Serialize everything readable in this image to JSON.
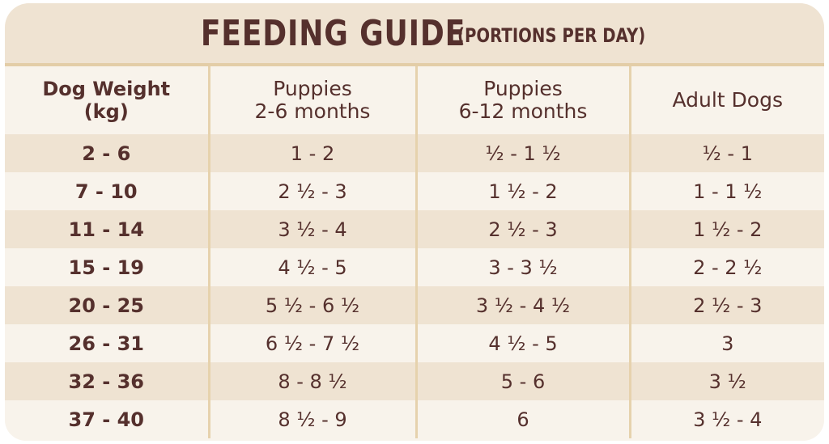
{
  "title": {
    "main": "FEEDING GUIDE",
    "sub": "(PORTIONS PER DAY)"
  },
  "colors": {
    "text": "#55302d",
    "header_band": "#efe3d2",
    "row_light": "#f8f3eb",
    "row_dark": "#efe3d2",
    "divider": "#e6d2ad"
  },
  "table": {
    "headers": [
      {
        "line1": "Dog Weight",
        "line2": "(kg)"
      },
      {
        "line1": "Puppies",
        "line2": "2-6 months"
      },
      {
        "line1": "Puppies",
        "line2": "6-12 months"
      },
      {
        "line1": "Adult Dogs",
        "line2": ""
      }
    ],
    "rows": [
      [
        "2 - 6",
        "1 - 2",
        "½ - 1 ½",
        "½ - 1"
      ],
      [
        "7 - 10",
        "2 ½ - 3",
        "1 ½ - 2",
        "1 - 1 ½"
      ],
      [
        "11 - 14",
        "3 ½ - 4",
        "2 ½ - 3",
        "1 ½ - 2"
      ],
      [
        "15 - 19",
        "4 ½ - 5",
        "3 - 3 ½",
        "2 - 2 ½"
      ],
      [
        "20 - 25",
        "5 ½ - 6 ½",
        "3 ½ - 4 ½",
        "2 ½ - 3"
      ],
      [
        "26 - 31",
        "6 ½ - 7 ½",
        "4 ½ - 5",
        "3"
      ],
      [
        "32 - 36",
        "8 - 8 ½",
        "5 - 6",
        "3 ½"
      ],
      [
        "37 - 40",
        "8 ½ - 9",
        "6",
        "3 ½ - 4"
      ]
    ]
  }
}
